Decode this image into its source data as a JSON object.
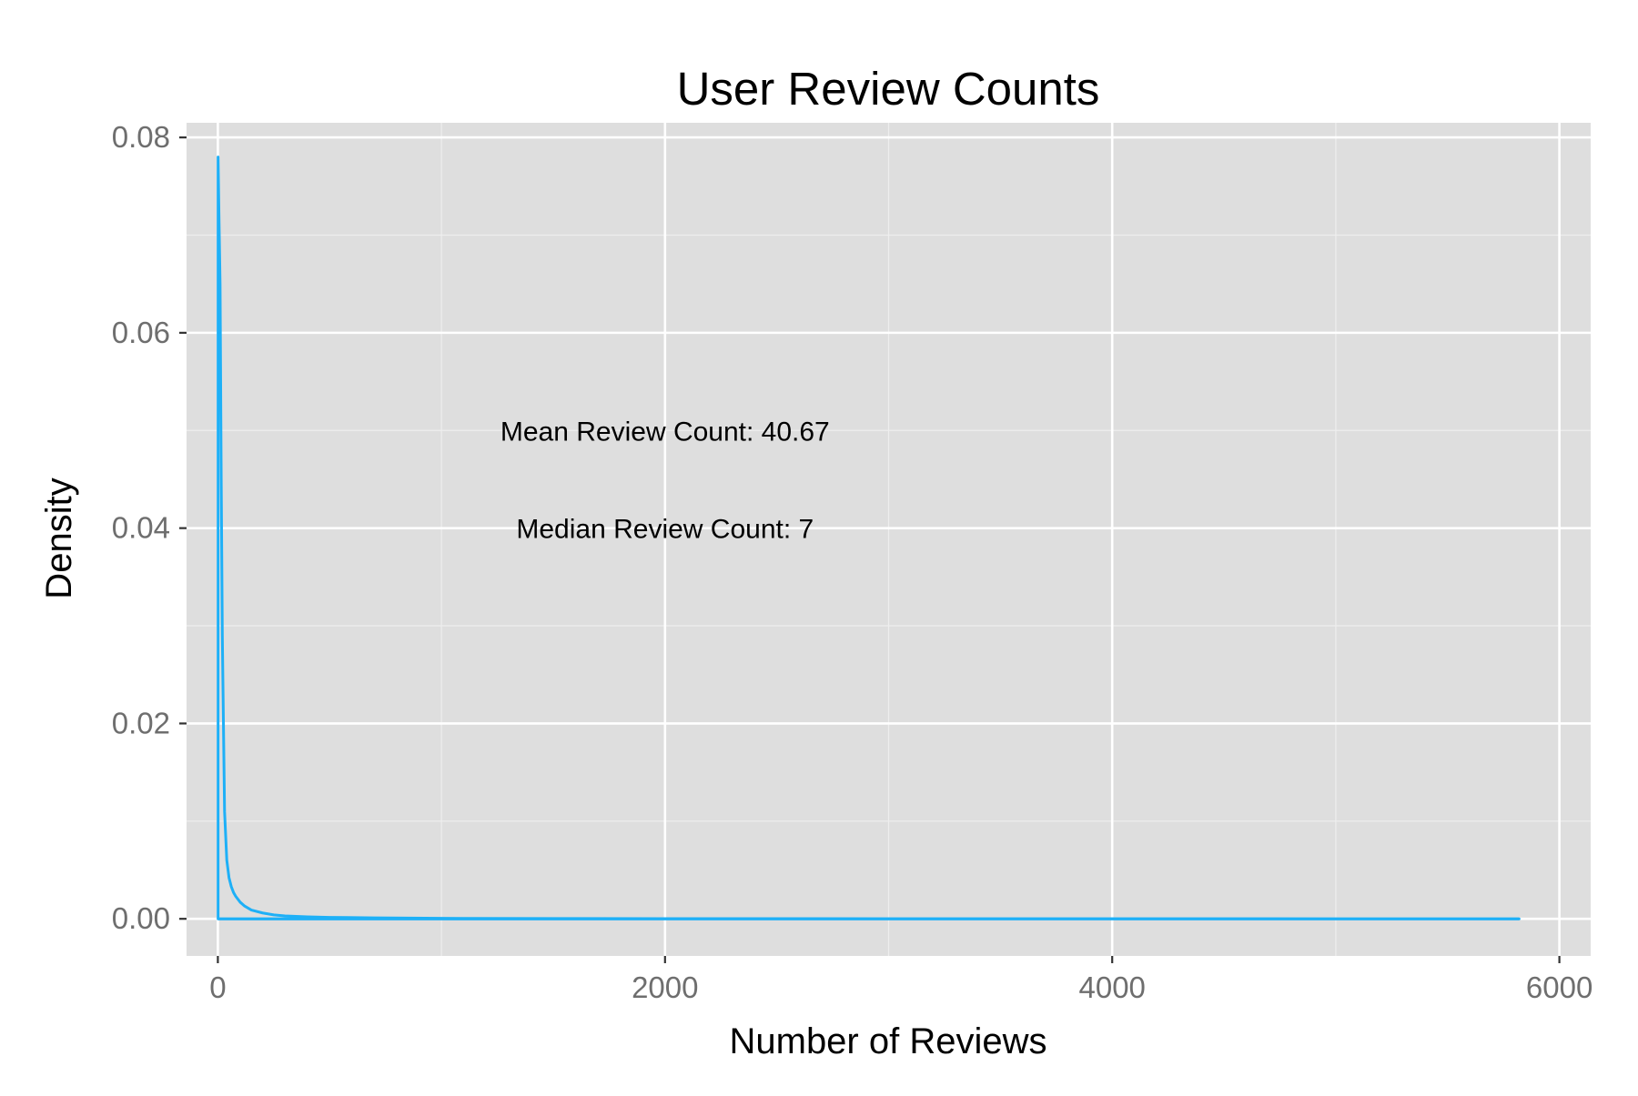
{
  "chart_data": {
    "type": "area",
    "title": "User Review Counts",
    "xlabel": "Number of Reviews",
    "ylabel": "Density",
    "xlim": [
      -140,
      6140
    ],
    "ylim": [
      -0.0038,
      0.0815
    ],
    "x_ticks": [
      0,
      2000,
      4000,
      6000
    ],
    "x_tick_labels": [
      "0",
      "2000",
      "4000",
      "6000"
    ],
    "x_minor_ticks": [
      1000,
      3000,
      5000
    ],
    "y_ticks": [
      0.0,
      0.02,
      0.04,
      0.06,
      0.08
    ],
    "y_tick_labels": [
      "0.00",
      "0.02",
      "0.04",
      "0.06",
      "0.08"
    ],
    "y_minor_ticks": [
      0.01,
      0.03,
      0.05,
      0.07
    ],
    "grid": true,
    "legend": "none",
    "colors": {
      "panel_background": "#dedede",
      "grid_major": "#ffffff",
      "grid_minor": "#eeeeee",
      "series_line": "#1eb0f7",
      "tick_label": "#6e6e6e"
    },
    "series": [
      {
        "x": [
          1,
          5,
          10,
          15,
          20,
          30,
          40,
          50,
          60,
          70,
          80,
          100,
          120,
          150,
          200,
          250,
          300,
          400,
          500,
          700,
          1000,
          1500,
          2000,
          3000,
          4000,
          5000,
          5820
        ],
        "y": [
          0.078,
          0.072,
          0.065,
          0.045,
          0.029,
          0.011,
          0.006,
          0.0042,
          0.0033,
          0.0027,
          0.0023,
          0.0017,
          0.0013,
          0.0009,
          0.0006,
          0.0004,
          0.0003,
          0.0002,
          0.00015,
          0.0001,
          5e-05,
          3e-05,
          2e-05,
          1e-05,
          1e-05,
          0.0,
          0.0
        ]
      }
    ],
    "annotations": [
      {
        "text": "Mean Review Count: 40.67",
        "x": 2000,
        "y": 0.05
      },
      {
        "text": "Median Review Count: 7",
        "x": 2000,
        "y": 0.04
      }
    ]
  }
}
